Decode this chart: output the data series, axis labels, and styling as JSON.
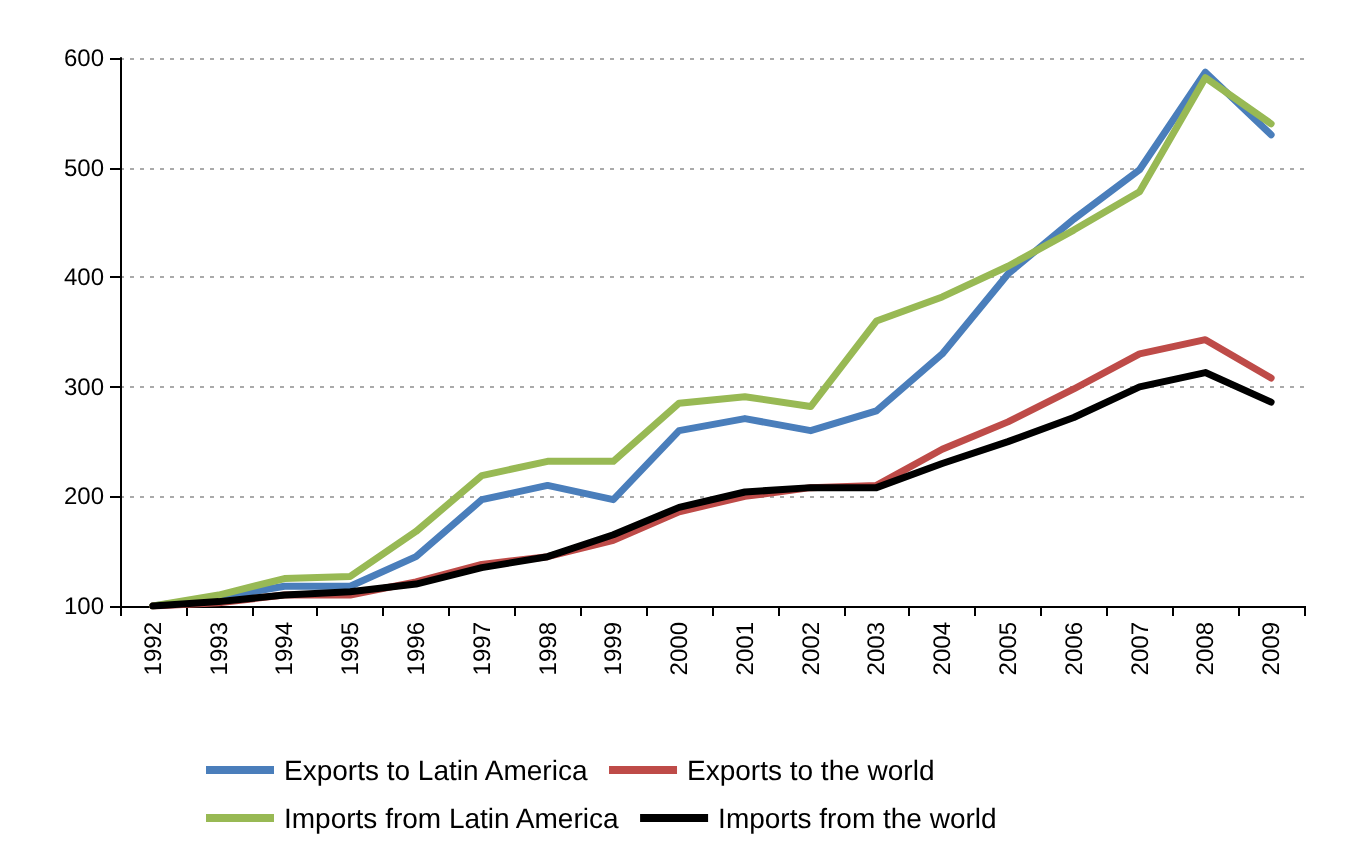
{
  "chart_data": {
    "type": "line",
    "categories": [
      "1992",
      "1993",
      "1994",
      "1995",
      "1996",
      "1997",
      "1998",
      "1999",
      "2000",
      "2001",
      "2002",
      "2003",
      "2004",
      "2005",
      "2006",
      "2007",
      "2008",
      "2009"
    ],
    "series": [
      {
        "name": "Exports to Latin America",
        "color": "#4a7ebb",
        "values": [
          100,
          108,
          118,
          118,
          145,
          197,
          210,
          197,
          260,
          271,
          260,
          278,
          330,
          403,
          453,
          498,
          587,
          530
        ]
      },
      {
        "name": "Exports to the world",
        "color": "#be4b48",
        "values": [
          100,
          103,
          110,
          110,
          122,
          138,
          145,
          160,
          186,
          200,
          208,
          210,
          243,
          268,
          298,
          330,
          343,
          308
        ]
      },
      {
        "name": "Imports from Latin America",
        "color": "#98b954",
        "values": [
          100,
          110,
          125,
          127,
          168,
          219,
          232,
          232,
          285,
          291,
          282,
          360,
          382,
          410,
          443,
          478,
          582,
          540
        ]
      },
      {
        "name": "Imports from the world",
        "color": "#000000",
        "values": [
          100,
          104,
          110,
          113,
          120,
          135,
          145,
          165,
          190,
          204,
          208,
          208,
          230,
          250,
          272,
          300,
          313,
          286
        ]
      }
    ],
    "ylim": [
      100,
      600
    ],
    "yticks": [
      100,
      200,
      300,
      400,
      500,
      600
    ],
    "grid": "y",
    "legend": "bottom",
    "marker": "none",
    "line_style": "solid"
  }
}
